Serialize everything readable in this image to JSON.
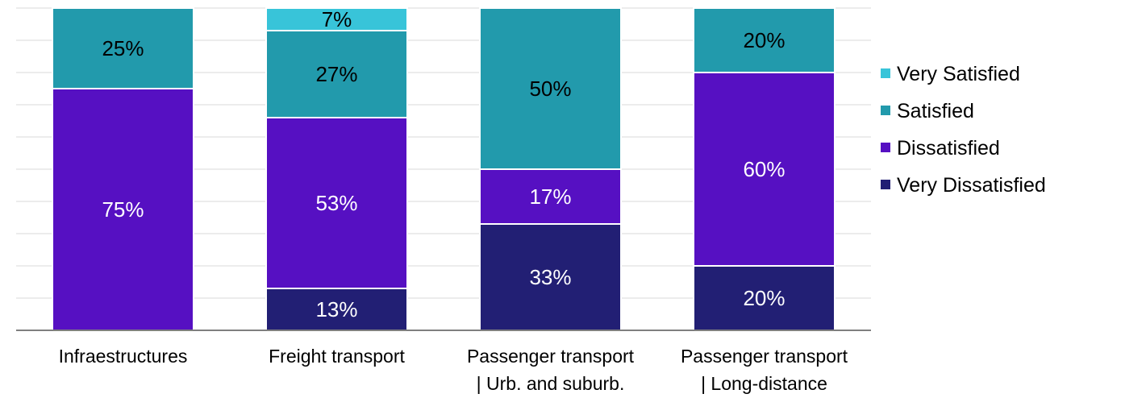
{
  "chart_data": {
    "type": "bar",
    "stacked": true,
    "percent": true,
    "categories": [
      [
        "Infraestructures"
      ],
      [
        "Freight transport"
      ],
      [
        "Passenger transport",
        "| Urb. and suburb."
      ],
      [
        "Passenger transport",
        "| Long-distance"
      ]
    ],
    "series": [
      {
        "name": "Very Dissatisfied",
        "color": "#221f74",
        "values": [
          0,
          13,
          33,
          20
        ],
        "labels": [
          "",
          "13%",
          "33%",
          "20%"
        ],
        "label_color": "#ffffff"
      },
      {
        "name": "Dissatisfied",
        "color": "#5610c2",
        "values": [
          75,
          53,
          17,
          60
        ],
        "labels": [
          "75%",
          "53%",
          "17%",
          "60%"
        ],
        "label_color": "#ffffff"
      },
      {
        "name": "Satisfied",
        "color": "#229aac",
        "values": [
          25,
          27,
          50,
          20
        ],
        "labels": [
          "25%",
          "27%",
          "50%",
          "20%"
        ],
        "label_color": "#000000"
      },
      {
        "name": "Very Satisfied",
        "color": "#38c4d9",
        "values": [
          0,
          7,
          0,
          0
        ],
        "labels": [
          "",
          "7%",
          "",
          ""
        ],
        "label_color": "#000000"
      }
    ],
    "ylim": [
      0,
      100
    ],
    "grid": true,
    "legend_position": "right",
    "legend_order": [
      "Very Satisfied",
      "Satisfied",
      "Dissatisfied",
      "Very Dissatisfied"
    ]
  }
}
